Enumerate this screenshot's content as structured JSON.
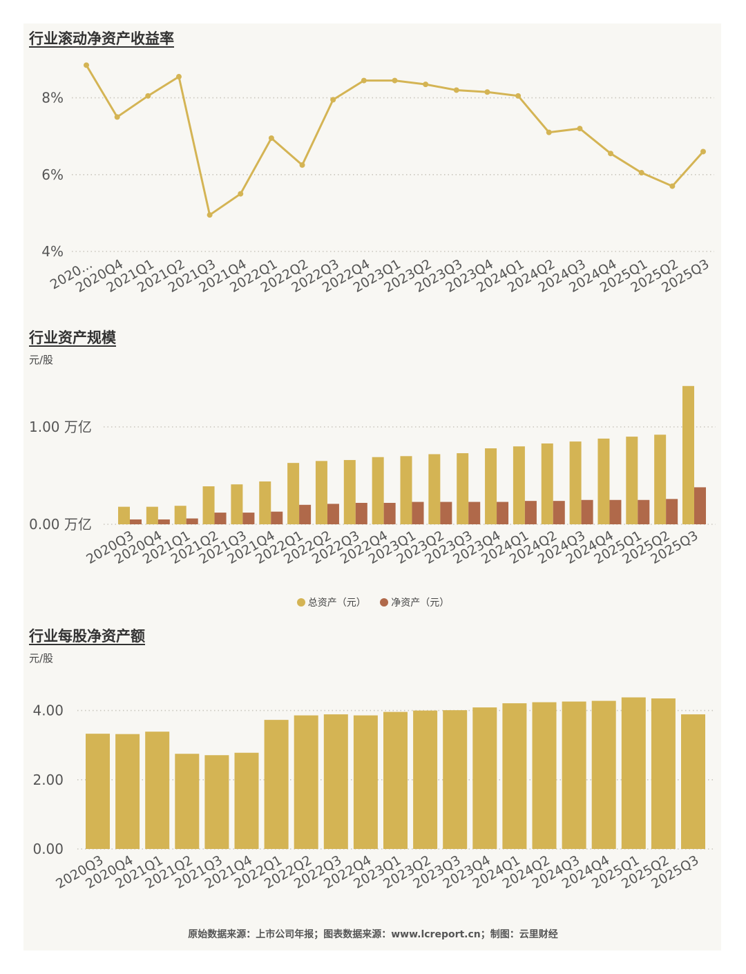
{
  "colors": {
    "gold": "#d4b454",
    "brown": "#b0694a",
    "grid": "#c9c6bd",
    "axis_text": "#555555"
  },
  "chart_data": [
    {
      "id": "roe",
      "type": "line",
      "title": "行业滚动净资产收益率",
      "categories": [
        "2020...",
        "2020Q4",
        "2021Q1",
        "2021Q2",
        "2021Q3",
        "2021Q4",
        "2022Q1",
        "2022Q2",
        "2022Q3",
        "2022Q4",
        "2023Q1",
        "2023Q2",
        "2023Q3",
        "2023Q4",
        "2024Q1",
        "2024Q2",
        "2024Q3",
        "2024Q4",
        "2025Q1",
        "2025Q2",
        "2025Q3"
      ],
      "values": [
        8.85,
        7.5,
        8.05,
        8.55,
        4.95,
        5.5,
        6.95,
        6.25,
        7.95,
        8.45,
        8.45,
        8.35,
        8.2,
        8.15,
        8.05,
        7.1,
        7.2,
        6.55,
        6.05,
        5.7,
        6.6
      ],
      "yticks": [
        4,
        6,
        8
      ],
      "ytick_labels": [
        "4%",
        "6%",
        "8%"
      ],
      "ylim": [
        4,
        8.85
      ],
      "grid": true
    },
    {
      "id": "assets",
      "type": "bar",
      "title": "行业资产规模",
      "unit": "元/股",
      "categories": [
        "2020Q3",
        "2020Q4",
        "2021Q1",
        "2021Q2",
        "2021Q3",
        "2021Q4",
        "2022Q1",
        "2022Q2",
        "2022Q3",
        "2022Q4",
        "2023Q1",
        "2023Q2",
        "2023Q3",
        "2023Q4",
        "2024Q1",
        "2024Q2",
        "2024Q3",
        "2024Q4",
        "2025Q1",
        "2025Q2",
        "2025Q3"
      ],
      "series": [
        {
          "name": "总资产（元）",
          "values": [
            0.18,
            0.18,
            0.19,
            0.39,
            0.41,
            0.44,
            0.63,
            0.65,
            0.66,
            0.69,
            0.7,
            0.72,
            0.73,
            0.78,
            0.8,
            0.83,
            0.85,
            0.88,
            0.9,
            0.92,
            1.42
          ]
        },
        {
          "name": "净资产（元）",
          "values": [
            0.05,
            0.05,
            0.06,
            0.12,
            0.12,
            0.13,
            0.2,
            0.21,
            0.22,
            0.22,
            0.23,
            0.23,
            0.23,
            0.23,
            0.24,
            0.24,
            0.25,
            0.25,
            0.25,
            0.26,
            0.38
          ]
        }
      ],
      "yticks": [
        0,
        1
      ],
      "ytick_labels": [
        "0.00 万亿",
        "1.00 万亿"
      ],
      "ylim": [
        0,
        1.42
      ],
      "legend": "bottom",
      "grid": true
    },
    {
      "id": "bvps",
      "type": "bar",
      "title": "行业每股净资产额",
      "unit": "元/股",
      "categories": [
        "2020Q3",
        "2020Q4",
        "2021Q1",
        "2021Q2",
        "2021Q3",
        "2021Q4",
        "2022Q1",
        "2022Q2",
        "2022Q3",
        "2022Q4",
        "2023Q1",
        "2023Q2",
        "2023Q3",
        "2023Q4",
        "2024Q1",
        "2024Q2",
        "2024Q3",
        "2024Q4",
        "2025Q1",
        "2025Q2",
        "2025Q3"
      ],
      "values": [
        3.33,
        3.32,
        3.39,
        2.75,
        2.71,
        2.78,
        3.73,
        3.86,
        3.89,
        3.86,
        3.96,
        4.0,
        4.01,
        4.09,
        4.21,
        4.24,
        4.26,
        4.28,
        4.38,
        4.35,
        3.89
      ],
      "yticks": [
        0,
        2,
        4
      ],
      "ytick_labels": [
        "0.00",
        "2.00",
        "4.00"
      ],
      "ylim": [
        0,
        4.38
      ],
      "grid": true
    }
  ],
  "footer": "原始数据来源：上市公司年报；图表数据来源：www.lcreport.cn；制图：云里财经"
}
